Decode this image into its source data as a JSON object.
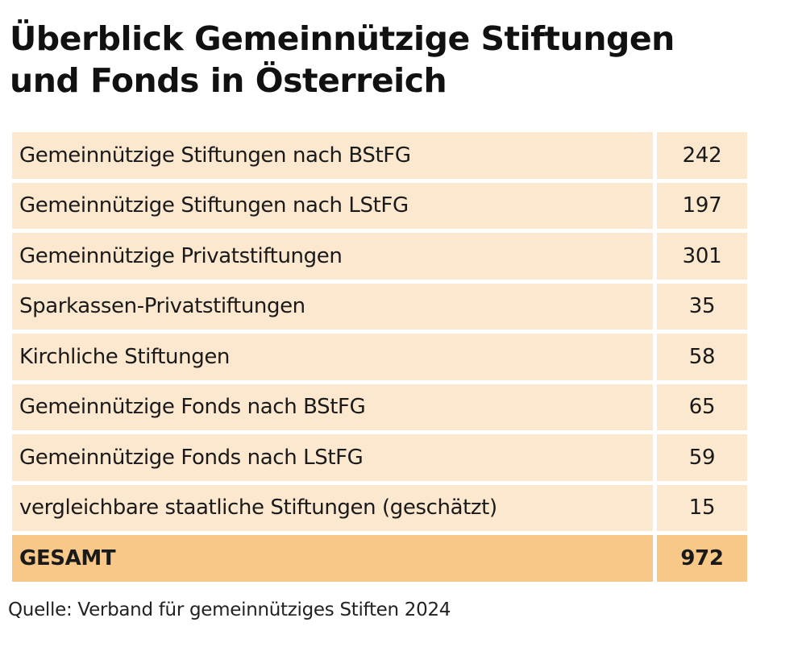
{
  "title_lines": [
    "Überblick Gemeinnützige Stiftungen",
    "und Fonds in Österreich"
  ],
  "source": "Quelle: Verband für gemeinnütziges Stiften 2024",
  "colors": {
    "row_background": "#fce7cf",
    "total_background": "#f8c889"
  },
  "chart_data": {
    "type": "table",
    "title": "Überblick Gemeinnützige Stiftungen und Fonds in Österreich",
    "rows": [
      {
        "label": "Gemeinnützige Stiftungen nach BStFG",
        "value": 242
      },
      {
        "label": "Gemeinnützige Stiftungen nach LStFG",
        "value": 197
      },
      {
        "label": "Gemeinnützige Privatstiftungen",
        "value": 301
      },
      {
        "label": "Sparkassen-Privatstiftungen",
        "value": 35
      },
      {
        "label": "Kirchliche Stiftungen",
        "value": 58
      },
      {
        "label": "Gemeinnützige Fonds nach BStFG",
        "value": 65
      },
      {
        "label": "Gemeinnützige Fonds nach LStFG",
        "value": 59
      },
      {
        "label": "vergleichbare staatliche Stiftungen (geschätzt)",
        "value": 15
      }
    ],
    "total": {
      "label": "GESAMT",
      "value": 972
    }
  }
}
